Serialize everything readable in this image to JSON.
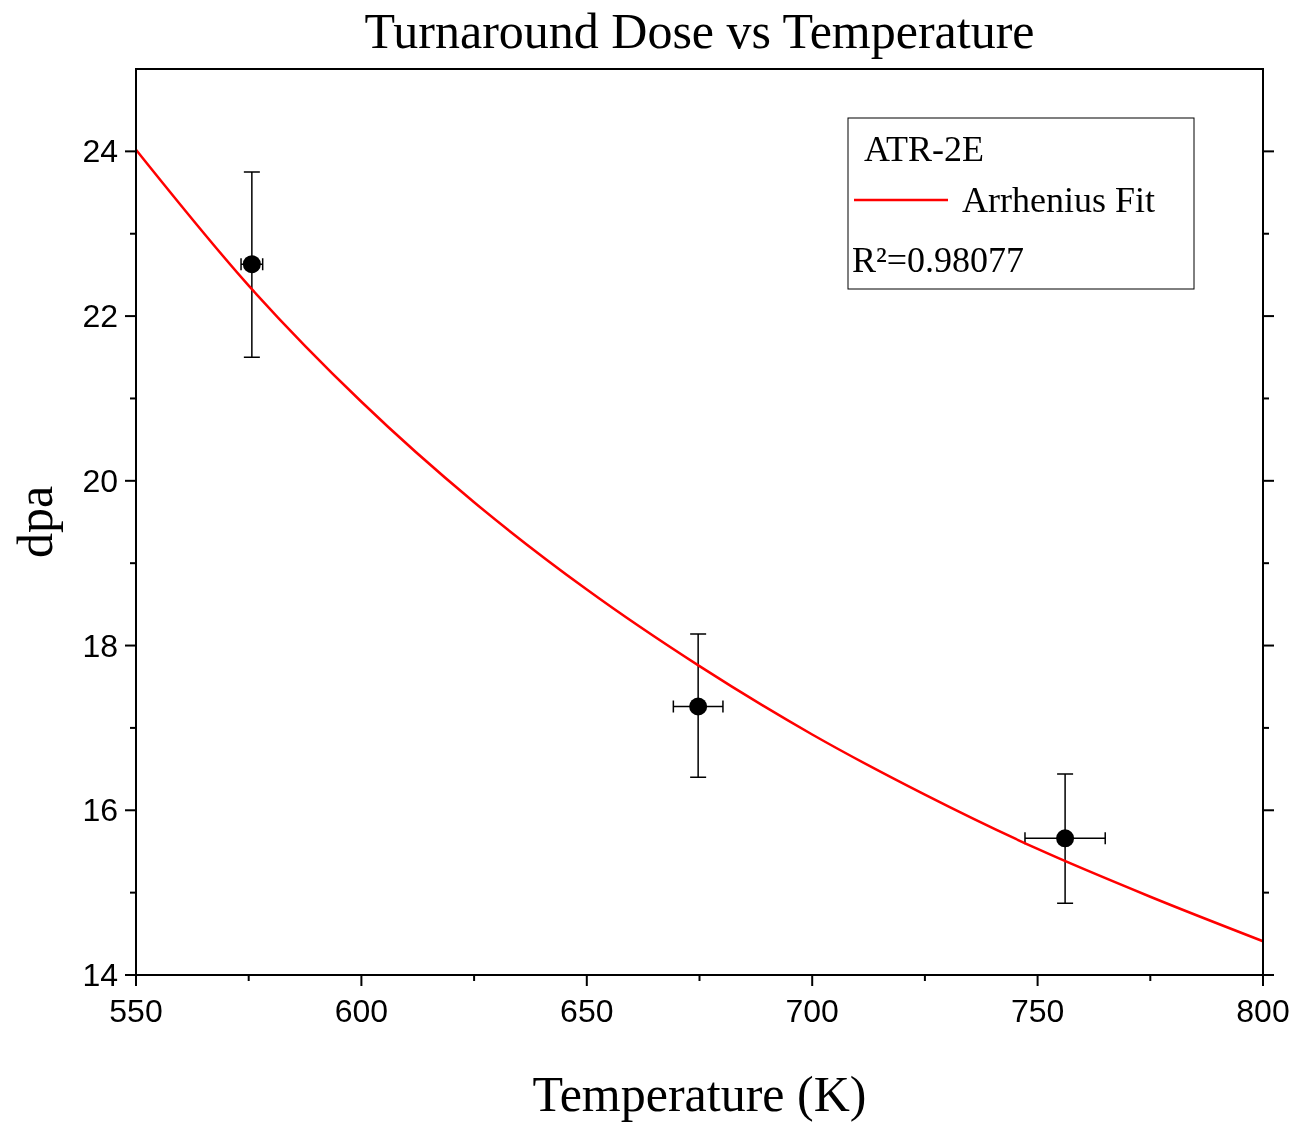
{
  "chart_data": {
    "type": "scatter",
    "title": "Turnaround Dose vs Temperature",
    "xlabel": "Temperature (K)",
    "ylabel": "dpa",
    "xlim": [
      550,
      800
    ],
    "ylim": [
      14,
      25
    ],
    "xticks": [
      550,
      {
        "value": 575,
        "label": null
      },
      600,
      {
        "value": 625,
        "label": null
      },
      650,
      {
        "value": 675,
        "label": null
      },
      700,
      {
        "value": 725,
        "label": null
      },
      750,
      {
        "value": 775,
        "label": null
      },
      800
    ],
    "yticks": [
      14,
      {
        "value": 15,
        "label": null
      },
      16,
      {
        "value": 17,
        "label": null
      },
      18,
      {
        "value": 19,
        "label": null
      },
      20,
      {
        "value": 21,
        "label": null
      },
      22,
      {
        "value": 23,
        "label": null
      },
      24
    ],
    "legend": "top right",
    "legend_title": "ATR-2E",
    "grid": false,
    "annotations": [
      "R²=0.98077"
    ],
    "series": [
      {
        "marker": "circle",
        "color": "#000000",
        "x": [
          575.7,
          674.7,
          756.1
        ],
        "values": [
          22.63,
          17.26,
          15.66
        ],
        "errors": [
          [
            21.5,
            23.75
          ],
          [
            16.4,
            18.14
          ],
          [
            14.87,
            16.44
          ]
        ],
        "xerrors": [
          2.4,
          5.5,
          8.9
        ]
      },
      {
        "type": "line",
        "name": "Arrhenius Fit",
        "color": "#ff0000",
        "line_style": "solid",
        "x": [
          550,
          575,
          600,
          625,
          650,
          675,
          700,
          725,
          750,
          775,
          800
        ],
        "values": [
          24.02,
          22.37,
          20.96,
          19.74,
          18.68,
          17.75,
          16.92,
          16.19,
          15.53,
          14.95,
          14.41
        ]
      }
    ]
  }
}
